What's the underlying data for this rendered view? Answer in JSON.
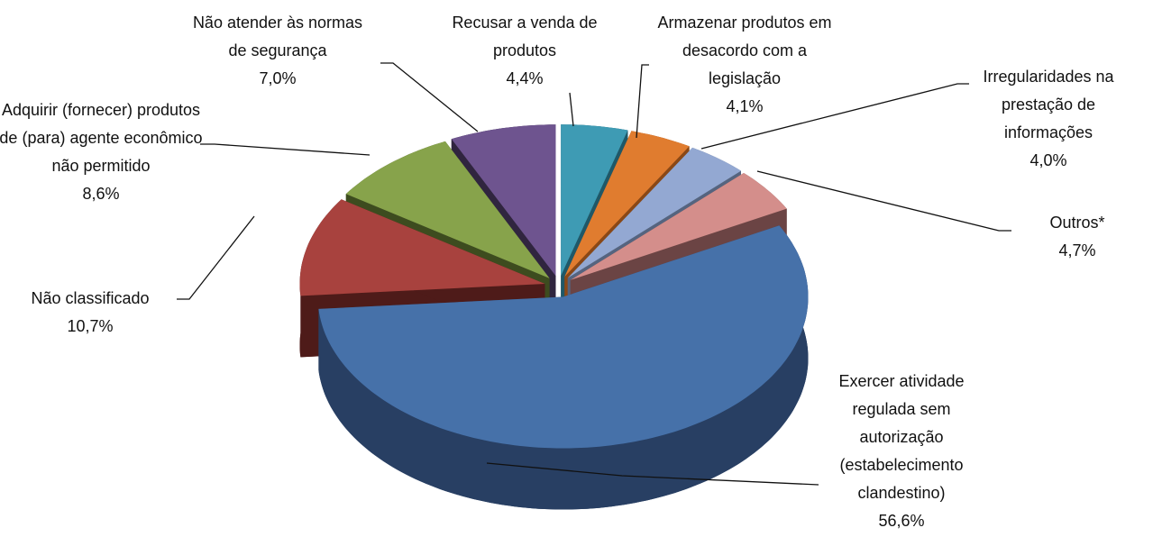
{
  "chart_data": {
    "type": "pie3d",
    "categories": [
      "Recusar a venda de produtos",
      "Armazenar produtos em desacordo com a legislação",
      "Irregularidades na prestação de informações",
      "Outros*",
      "Exercer atividade regulada sem autorização (estabelecimento clandestino)",
      "Não classificado",
      "Adquirir (fornecer) produtos de (para) agente econômico não permitido",
      "Não atender às normas de segurança"
    ],
    "values": [
      4.4,
      4.1,
      4.0,
      4.7,
      56.6,
      10.7,
      8.6,
      7.0
    ],
    "value_labels": [
      "4,4%",
      "4,1%",
      "4,0%",
      "4,7%",
      "56,6%",
      "10,7%",
      "8,6%",
      "7,0%"
    ],
    "colors": [
      "#3e9bb4",
      "#e07c2f",
      "#93a8d2",
      "#d48e8b",
      "#4671a9",
      "#a8423e",
      "#87a34b",
      "#6e548f"
    ],
    "side_colors": [
      "#1f5868",
      "#8a4816",
      "#55647f",
      "#6b4444",
      "#283f63",
      "#4e1b19",
      "#3d4c1f",
      "#30253f"
    ]
  }
}
